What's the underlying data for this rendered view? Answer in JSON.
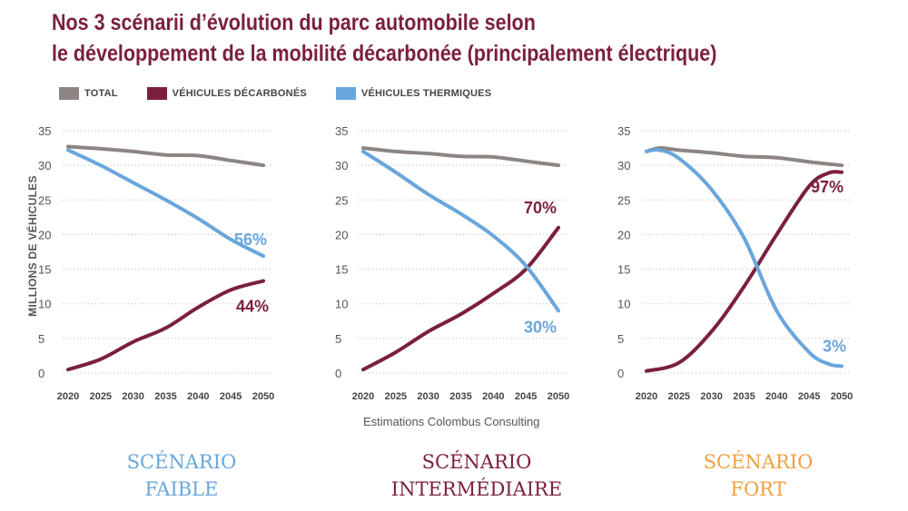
{
  "header": {
    "title_line1": "Nos 3 scénarii d’évolution du parc automobile selon",
    "title_line2": "le développement de la mobilité décarbonée (principalement électrique)"
  },
  "legend": [
    {
      "label": "TOTAL",
      "color": "#8c8581"
    },
    {
      "label": "VÉHICULES DÉCARBONÉS",
      "color": "#7b1f3d"
    },
    {
      "label": "VÉHICULES THERMIQUES",
      "color": "#6aa6db"
    }
  ],
  "ylabel": "MILLIONS DE VÉHICULES",
  "source": "Estimations Colombus Consulting",
  "scenarios": [
    {
      "line1": "SCÉNARIO",
      "line2": "FAIBLE",
      "color": "#6aa6db"
    },
    {
      "line1": "SCÉNARIO",
      "line2": "INTERMÉDIAIRE",
      "color": "#7b1f3d"
    },
    {
      "line1": "SCÉNARIO",
      "line2": "FORT",
      "color": "#f0a040"
    }
  ],
  "chart_data": [
    {
      "type": "line",
      "ylim": [
        0,
        35
      ],
      "yticks": [
        0,
        5,
        10,
        15,
        20,
        25,
        30,
        35
      ],
      "xticks": [
        2020,
        2025,
        2030,
        2035,
        2040,
        2045,
        2050
      ],
      "grid": "horizontal-dotted",
      "series": [
        {
          "name": "TOTAL",
          "color": "#8c8581",
          "x": [
            2020,
            2025,
            2030,
            2035,
            2040,
            2045,
            2050
          ],
          "y": [
            32.7,
            32.4,
            32.0,
            31.5,
            31.4,
            30.7,
            30.0
          ]
        },
        {
          "name": "VÉHICULES DÉCARBONÉS",
          "color": "#7b1f3d",
          "x": [
            2020,
            2025,
            2030,
            2035,
            2040,
            2045,
            2050
          ],
          "y": [
            0.5,
            2.0,
            4.5,
            6.5,
            9.5,
            12.0,
            13.3
          ],
          "end_label": "44%"
        },
        {
          "name": "VÉHICULES THERMIQUES",
          "color": "#6aa6db",
          "x": [
            2020,
            2025,
            2030,
            2035,
            2040,
            2045,
            2050
          ],
          "y": [
            32.2,
            30.0,
            27.5,
            25.0,
            22.3,
            19.3,
            16.9
          ],
          "end_label": "56%"
        }
      ]
    },
    {
      "type": "line",
      "ylim": [
        0,
        35
      ],
      "yticks": [
        0,
        5,
        10,
        15,
        20,
        25,
        30,
        35
      ],
      "xticks": [
        2020,
        2025,
        2030,
        2035,
        2040,
        2045,
        2050
      ],
      "grid": "horizontal-dotted",
      "series": [
        {
          "name": "TOTAL",
          "color": "#8c8581",
          "x": [
            2020,
            2025,
            2030,
            2035,
            2040,
            2045,
            2050
          ],
          "y": [
            32.5,
            32.0,
            31.7,
            31.3,
            31.2,
            30.6,
            30.0
          ]
        },
        {
          "name": "VÉHICULES DÉCARBONÉS",
          "color": "#7b1f3d",
          "x": [
            2020,
            2025,
            2030,
            2035,
            2040,
            2045,
            2050
          ],
          "y": [
            0.5,
            3.0,
            6.0,
            8.5,
            11.5,
            15.0,
            21.0
          ],
          "end_label": "70%"
        },
        {
          "name": "VÉHICULES THERMIQUES",
          "color": "#6aa6db",
          "x": [
            2020,
            2025,
            2030,
            2035,
            2040,
            2045,
            2050
          ],
          "y": [
            32.0,
            29.0,
            25.8,
            23.0,
            19.8,
            15.5,
            9.0
          ],
          "end_label": "30%"
        }
      ]
    },
    {
      "type": "line",
      "ylim": [
        0,
        35
      ],
      "yticks": [
        0,
        5,
        10,
        15,
        20,
        25,
        30,
        35
      ],
      "xticks": [
        2020,
        2025,
        2030,
        2035,
        2040,
        2045,
        2050
      ],
      "grid": "horizontal-dotted",
      "series": [
        {
          "name": "TOTAL",
          "color": "#8c8581",
          "x": [
            2020,
            2022,
            2025,
            2030,
            2035,
            2040,
            2045,
            2050
          ],
          "y": [
            32.0,
            32.5,
            32.2,
            31.8,
            31.3,
            31.1,
            30.5,
            30.0
          ]
        },
        {
          "name": "VÉHICULES DÉCARBONÉS",
          "color": "#7b1f3d",
          "x": [
            2020,
            2025,
            2030,
            2035,
            2040,
            2045,
            2048,
            2050
          ],
          "y": [
            0.3,
            1.5,
            6.0,
            12.5,
            20.0,
            27.0,
            28.9,
            29.0
          ],
          "end_label": "97%"
        },
        {
          "name": "VÉHICULES THERMIQUES",
          "color": "#6aa6db",
          "x": [
            2020,
            2022,
            2025,
            2030,
            2035,
            2040,
            2045,
            2048,
            2050
          ],
          "y": [
            32.0,
            32.2,
            31.0,
            26.5,
            19.5,
            9.0,
            3.0,
            1.3,
            1.0
          ],
          "end_label": "3%"
        }
      ]
    }
  ]
}
